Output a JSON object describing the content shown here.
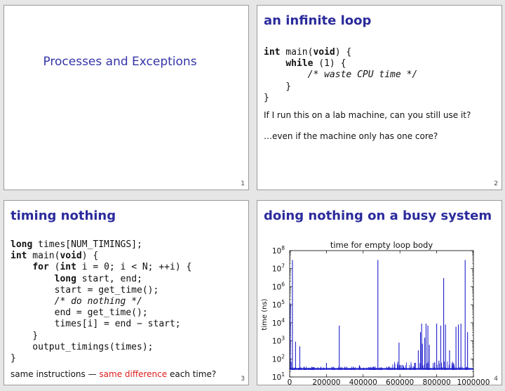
{
  "slide1": {
    "title": "Processes and Exceptions",
    "page": "1"
  },
  "slide2": {
    "title": "an infinite loop",
    "code": [
      [
        {
          "t": "int",
          "k": "kw"
        },
        {
          "t": " main("
        },
        {
          "t": "void",
          "k": "kw"
        },
        {
          "t": ") {"
        }
      ],
      [
        {
          "t": "    "
        },
        {
          "t": "while",
          "k": "kw"
        },
        {
          "t": " (1) {"
        }
      ],
      [
        {
          "t": "        "
        },
        {
          "t": "/* waste CPU time */",
          "k": "cm"
        }
      ],
      [
        {
          "t": "    }"
        }
      ],
      [
        {
          "t": "}"
        }
      ]
    ],
    "text1": "If I run this on a lab machine, can you still use it?",
    "text2": "…even if the machine only has one core?",
    "page": "2"
  },
  "slide3": {
    "title": "timing nothing",
    "code": [
      [
        {
          "t": "long",
          "k": "kw"
        },
        {
          "t": " times[NUM_TIMINGS];"
        }
      ],
      [
        {
          "t": "int",
          "k": "kw"
        },
        {
          "t": " main("
        },
        {
          "t": "void",
          "k": "kw"
        },
        {
          "t": ") {"
        }
      ],
      [
        {
          "t": "    "
        },
        {
          "t": "for",
          "k": "kw"
        },
        {
          "t": " ("
        },
        {
          "t": "int",
          "k": "kw"
        },
        {
          "t": " i = 0; i < N; ++i) {"
        }
      ],
      [
        {
          "t": "        "
        },
        {
          "t": "long",
          "k": "kw"
        },
        {
          "t": " start, end;"
        }
      ],
      [
        {
          "t": "        start = get_time();"
        }
      ],
      [
        {
          "t": "        "
        },
        {
          "t": "/* do nothing */",
          "k": "cm"
        }
      ],
      [
        {
          "t": "        end = get_time();"
        }
      ],
      [
        {
          "t": "        times[i] = end − start;"
        }
      ],
      [
        {
          "t": "    }"
        }
      ],
      [
        {
          "t": "    output_timings(times);"
        }
      ],
      [
        {
          "t": "}"
        }
      ]
    ],
    "footer_before": "same instructions — ",
    "footer_highlight": "same difference",
    "footer_after": " each time?",
    "highlight_color": "#dd1c1c",
    "page": "3"
  },
  "slide4": {
    "title": "doing nothing on a busy system",
    "page": "4"
  },
  "colors": {
    "title": "#2b2b9c",
    "series": "#1f1fcc"
  },
  "chart_data": {
    "type": "line",
    "title": "time for empty loop body",
    "xlabel": "",
    "ylabel": "time (ns)",
    "yscale": "log",
    "xlim": [
      0,
      1000000
    ],
    "ylim": [
      10,
      100000000
    ],
    "xticks": [
      "0",
      "200000",
      "400000",
      "600000",
      "800000",
      "1000000"
    ],
    "yticks": [
      {
        "base": "10",
        "exp": "1"
      },
      {
        "base": "10",
        "exp": "2"
      },
      {
        "base": "10",
        "exp": "3"
      },
      {
        "base": "10",
        "exp": "4"
      },
      {
        "base": "10",
        "exp": "5"
      },
      {
        "base": "10",
        "exp": "6"
      },
      {
        "base": "10",
        "exp": "7"
      },
      {
        "base": "10",
        "exp": "8"
      }
    ],
    "grid": false,
    "legend": "none",
    "series": [
      {
        "baseline": 28,
        "spikes": [
          [
            3000,
            120000
          ],
          [
            8000,
            70
          ],
          [
            15000,
            30000000
          ],
          [
            32000,
            900
          ],
          [
            55000,
            500
          ],
          [
            120000,
            35
          ],
          [
            200000,
            60
          ],
          [
            270000,
            7000
          ],
          [
            380000,
            45
          ],
          [
            480000,
            30000000
          ],
          [
            570000,
            35
          ],
          [
            595000,
            800
          ],
          [
            620000,
            40
          ],
          [
            680000,
            60
          ],
          [
            700000,
            300
          ],
          [
            712000,
            3000
          ],
          [
            718000,
            9000
          ],
          [
            722000,
            700
          ],
          [
            735000,
            1500
          ],
          [
            742000,
            9000
          ],
          [
            752000,
            7000
          ],
          [
            760000,
            600
          ],
          [
            775000,
            30
          ],
          [
            800000,
            9000
          ],
          [
            812000,
            80
          ],
          [
            822000,
            7000
          ],
          [
            838000,
            3000000
          ],
          [
            848000,
            8000
          ],
          [
            870000,
            300
          ],
          [
            905000,
            6000
          ],
          [
            918000,
            8000
          ],
          [
            932000,
            9000
          ],
          [
            955000,
            30000000
          ],
          [
            968000,
            3000
          ]
        ]
      }
    ]
  }
}
